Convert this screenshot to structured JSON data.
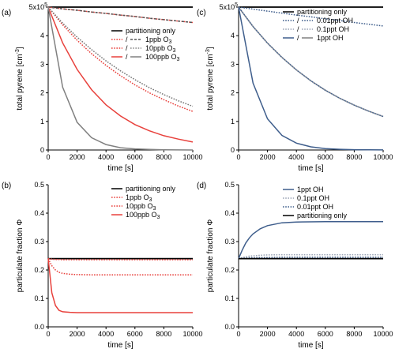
{
  "chart_data": [
    {
      "type": "line",
      "panel_label": "(a)",
      "title": "",
      "xlabel": "time [s]",
      "ylabel": "total pyrene [cm^-3]",
      "xlim": [
        0,
        10000
      ],
      "ylim": [
        0,
        500000
      ],
      "xticks": [
        0,
        2000,
        4000,
        6000,
        8000,
        10000
      ],
      "yticks": [
        0,
        1,
        2,
        3,
        4,
        5
      ],
      "ytick_labels": [
        "0",
        "1",
        "2",
        "3",
        "4",
        "5x10^5"
      ],
      "grid": false,
      "legend_position": "upper-right",
      "x": [
        0,
        1000,
        2000,
        3000,
        4000,
        5000,
        6000,
        7000,
        8000,
        9000,
        10000
      ],
      "series": [
        {
          "name": "partitioning only",
          "color": "#000000",
          "style": "solid",
          "values": [
            500000,
            500000,
            500000,
            500000,
            500000,
            500000,
            500000,
            500000,
            500000,
            500000,
            500000
          ]
        },
        {
          "name": "1ppb O3",
          "color": "#e8413c",
          "style": "dotted",
          "values": [
            500000,
            494000,
            489000,
            483000,
            478000,
            472000,
            467000,
            461000,
            456000,
            451000,
            446000
          ]
        },
        {
          "name": "1ppb O3 (dashed)",
          "color": "#555555",
          "style": "dashed",
          "values": [
            500000,
            494000,
            489000,
            483000,
            478000,
            472000,
            467000,
            461000,
            456000,
            451000,
            446000
          ]
        },
        {
          "name": "10ppb O3",
          "color": "#e8413c",
          "style": "dotted",
          "values": [
            500000,
            438000,
            384000,
            337000,
            296000,
            260000,
            228000,
            200000,
            176000,
            154000,
            135000
          ]
        },
        {
          "name": "10ppb O3 (grey)",
          "color": "#777777",
          "style": "dotted",
          "values": [
            500000,
            444000,
            395000,
            351000,
            312000,
            277000,
            246000,
            218000,
            194000,
            172000,
            153000
          ]
        },
        {
          "name": "100ppb O3",
          "color": "#e8413c",
          "style": "solid",
          "values": [
            500000,
            375000,
            282000,
            211000,
            158000,
            119000,
            89000,
            67000,
            50000,
            38000,
            28000
          ]
        },
        {
          "name": "100ppb O3 (grey)",
          "color": "#808080",
          "style": "solid",
          "values": [
            500000,
            220000,
            97000,
            43000,
            19000,
            8000,
            4000,
            2000,
            700,
            300,
            100
          ]
        }
      ],
      "legend": [
        {
          "prefix": "",
          "label": "partitioning only"
        },
        {
          "prefix": "/",
          "label": "1ppb O",
          "sub": "3"
        },
        {
          "prefix": "/",
          "label": "10ppb O",
          "sub": "3"
        },
        {
          "prefix": "/",
          "label": "100ppb O",
          "sub": "3"
        }
      ]
    },
    {
      "type": "line",
      "panel_label": "(c)",
      "title": "",
      "xlabel": "time [s]",
      "ylabel": "total pyrene [cm^-3]",
      "xlim": [
        0,
        10000
      ],
      "ylim": [
        0,
        500000
      ],
      "xticks": [
        0,
        2000,
        4000,
        6000,
        8000,
        10000
      ],
      "yticks": [
        0,
        1,
        2,
        3,
        4,
        5
      ],
      "ytick_labels": [
        "0",
        "1",
        "2",
        "3",
        "4",
        "5x10^5"
      ],
      "grid": false,
      "legend_position": "upper-right",
      "x": [
        0,
        1000,
        2000,
        3000,
        4000,
        5000,
        6000,
        7000,
        8000,
        9000,
        10000
      ],
      "series": [
        {
          "name": "partitioning only",
          "color": "#000000",
          "style": "solid",
          "values": [
            500000,
            500000,
            500000,
            500000,
            500000,
            500000,
            500000,
            500000,
            500000,
            500000,
            500000
          ]
        },
        {
          "name": "0.01ppt OH",
          "color": "#3f5e8c",
          "style": "dotted",
          "values": [
            500000,
            493000,
            486000,
            479000,
            472000,
            466000,
            459000,
            453000,
            446000,
            440000,
            434000
          ]
        },
        {
          "name": "0.1ppt OH",
          "color": "#3f5e8c",
          "style": "solid",
          "values": [
            500000,
            432000,
            374000,
            324000,
            280000,
            242000,
            209000,
            181000,
            157000,
            136000,
            117000
          ]
        },
        {
          "name": "0.1ppt OH (grey)",
          "color": "#999999",
          "style": "dotted",
          "values": [
            500000,
            432000,
            374000,
            324000,
            280000,
            242000,
            209000,
            181000,
            157000,
            136000,
            117000
          ]
        },
        {
          "name": "1ppt OH",
          "color": "#3f5e8c",
          "style": "solid",
          "values": [
            500000,
            234000,
            109000,
            51000,
            24000,
            11000,
            5000,
            2400,
            1100,
            500,
            240
          ]
        }
      ],
      "legend": [
        {
          "prefix": "",
          "label": "partitioning only"
        },
        {
          "prefix": "/",
          "label": "0.01ppt OH",
          "sub": ""
        },
        {
          "prefix": "/",
          "label": "0.1ppt OH",
          "sub": ""
        },
        {
          "prefix": "/",
          "label": "1ppt OH",
          "sub": ""
        }
      ]
    },
    {
      "type": "line",
      "panel_label": "(b)",
      "title": "",
      "xlabel": "time [s]",
      "ylabel": "particulate fraction Φ",
      "xlim": [
        0,
        10000
      ],
      "ylim": [
        0,
        0.5
      ],
      "xticks": [
        0,
        2000,
        4000,
        6000,
        8000,
        10000
      ],
      "yticks": [
        0,
        0.1,
        0.2,
        0.3,
        0.4,
        0.5
      ],
      "ytick_labels": [
        "0.0",
        "0.1",
        "0.2",
        "0.3",
        "0.4",
        "0.5"
      ],
      "grid": false,
      "legend_position": "upper-right",
      "x": [
        0,
        250,
        500,
        750,
        1000,
        1500,
        2000,
        3000,
        4000,
        6000,
        8000,
        10000
      ],
      "series": [
        {
          "name": "partitioning only",
          "color": "#000000",
          "style": "solid",
          "values": [
            0.24,
            0.24,
            0.24,
            0.24,
            0.24,
            0.24,
            0.24,
            0.24,
            0.24,
            0.24,
            0.24,
            0.24
          ]
        },
        {
          "name": "1ppb O3",
          "color": "#e8413c",
          "style": "dotted",
          "values": [
            0.24,
            0.238,
            0.237,
            0.237,
            0.236,
            0.236,
            0.236,
            0.236,
            0.236,
            0.236,
            0.236,
            0.236
          ]
        },
        {
          "name": "10ppb O3",
          "color": "#e8413c",
          "style": "dotted",
          "values": [
            0.24,
            0.215,
            0.2,
            0.192,
            0.188,
            0.185,
            0.184,
            0.183,
            0.183,
            0.183,
            0.183,
            0.183
          ]
        },
        {
          "name": "100ppb O3",
          "color": "#e8413c",
          "style": "solid",
          "values": [
            0.24,
            0.12,
            0.075,
            0.058,
            0.053,
            0.051,
            0.05,
            0.05,
            0.05,
            0.05,
            0.05,
            0.05
          ]
        }
      ],
      "legend": [
        {
          "prefix": "",
          "label": "partitioning only"
        },
        {
          "prefix": "",
          "label": "1ppb O",
          "sub": "3"
        },
        {
          "prefix": "",
          "label": "10ppb O",
          "sub": "3"
        },
        {
          "prefix": "",
          "label": "100ppb O",
          "sub": "3"
        }
      ]
    },
    {
      "type": "line",
      "panel_label": "(d)",
      "title": "",
      "xlabel": "time [s]",
      "ylabel": "particulate fraction Φ",
      "xlim": [
        0,
        10000
      ],
      "ylim": [
        0,
        0.5
      ],
      "xticks": [
        0,
        2000,
        4000,
        6000,
        8000,
        10000
      ],
      "yticks": [
        0,
        0.1,
        0.2,
        0.3,
        0.4,
        0.5
      ],
      "ytick_labels": [
        "0.0",
        "0.1",
        "0.2",
        "0.3",
        "0.4",
        "0.5"
      ],
      "grid": false,
      "legend_position": "upper-right",
      "x": [
        0,
        250,
        500,
        750,
        1000,
        1500,
        2000,
        3000,
        4000,
        6000,
        8000,
        10000
      ],
      "series": [
        {
          "name": "1ppt OH",
          "color": "#3f5e8c",
          "style": "solid",
          "values": [
            0.24,
            0.27,
            0.295,
            0.313,
            0.327,
            0.345,
            0.356,
            0.366,
            0.369,
            0.37,
            0.37,
            0.37
          ]
        },
        {
          "name": "0.1ppt OH",
          "color": "#9aa4b5",
          "style": "dotted",
          "values": [
            0.24,
            0.244,
            0.247,
            0.249,
            0.25,
            0.252,
            0.253,
            0.254,
            0.254,
            0.254,
            0.254,
            0.254
          ]
        },
        {
          "name": "0.01ppt OH",
          "color": "#3f5e8c",
          "style": "dotted",
          "values": [
            0.24,
            0.241,
            0.242,
            0.243,
            0.243,
            0.244,
            0.244,
            0.245,
            0.245,
            0.245,
            0.245,
            0.245
          ]
        },
        {
          "name": "partitioning only",
          "color": "#000000",
          "style": "solid",
          "values": [
            0.24,
            0.24,
            0.24,
            0.24,
            0.24,
            0.24,
            0.24,
            0.24,
            0.24,
            0.24,
            0.24,
            0.24
          ]
        }
      ],
      "legend": [
        {
          "prefix": "",
          "label": "1ppt OH",
          "sub": ""
        },
        {
          "prefix": "",
          "label": "0.1ppt OH",
          "sub": ""
        },
        {
          "prefix": "",
          "label": "0.01ppt OH",
          "sub": ""
        },
        {
          "prefix": "",
          "label": "partitioning only",
          "sub": ""
        }
      ]
    }
  ]
}
